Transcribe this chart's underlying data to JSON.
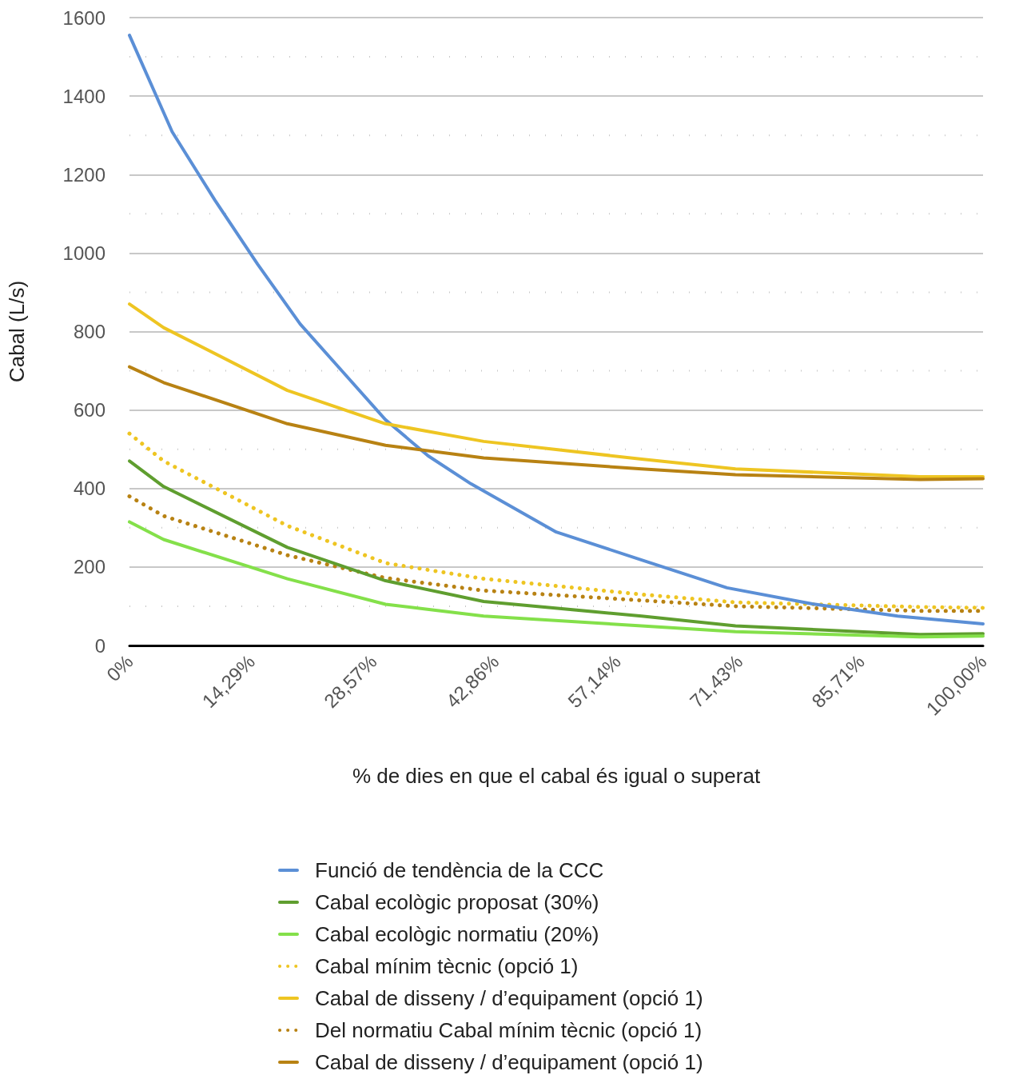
{
  "chart_data": {
    "type": "line",
    "xlabel": "% de dies en que el cabal és igual o superat",
    "ylabel": "Cabal (L/s)",
    "xlim": [
      0,
      100
    ],
    "xticks": [
      {
        "value": 0,
        "label": "0%"
      },
      {
        "value": 14.29,
        "label": "14,29%"
      },
      {
        "value": 28.57,
        "label": "28,57%"
      },
      {
        "value": 42.86,
        "label": "42,86%"
      },
      {
        "value": 57.14,
        "label": "57,14%"
      },
      {
        "value": 71.43,
        "label": "71,43%"
      },
      {
        "value": 85.71,
        "label": "85,71%"
      },
      {
        "value": 100,
        "label": "100,00%"
      }
    ],
    "ylim": [
      0,
      1600
    ],
    "yticks": [
      0,
      {
        "value": 100,
        "label": null
      },
      200,
      {
        "value": 300,
        "label": null
      },
      400,
      {
        "value": 500,
        "label": null
      },
      600,
      {
        "value": 700,
        "label": null
      },
      800,
      {
        "value": 900,
        "label": null
      },
      1000,
      {
        "value": 1100,
        "label": null
      },
      1200,
      {
        "value": 1300,
        "label": null
      },
      1400,
      {
        "value": 1500,
        "label": null
      },
      1600
    ],
    "grid": "y",
    "legend": "bottom",
    "marker": "none",
    "series": [
      {
        "name": "Funció de tendència de la CCC",
        "color": "#5b8fd6",
        "line_style": "solid",
        "x": [
          0,
          5,
          10,
          15,
          20,
          25,
          30,
          35,
          40,
          50,
          60,
          70,
          80,
          90,
          100
        ],
        "values": [
          1555,
          1309,
          1135,
          972,
          819,
          697,
          575,
          483,
          412,
          289,
          218,
          147,
          106,
          75,
          55
        ]
      },
      {
        "name": "Cabal ecològic proposat (30%)",
        "color": "#5f9e2f",
        "line_style": "solid",
        "x": [
          0,
          4,
          18.5,
          30,
          41.5,
          60,
          71,
          92.6,
          100
        ],
        "values": [
          470,
          405,
          250,
          165,
          112,
          75,
          50,
          28,
          30
        ]
      },
      {
        "name": "Cabal ecològic normatiu (20%)",
        "color": "#84e04a",
        "line_style": "solid",
        "x": [
          0,
          4,
          18.5,
          30,
          41.5,
          60,
          71,
          92.6,
          100
        ],
        "values": [
          315,
          270,
          170,
          105,
          75,
          50,
          35,
          22,
          24
        ]
      },
      {
        "name": "Cabal mínim tècnic (opció 1)",
        "color": "#eec522",
        "line_style": "dotted",
        "x": [
          0,
          4,
          18.5,
          30,
          41.5,
          60,
          71,
          92.6,
          100
        ],
        "values": [
          540,
          470,
          305,
          210,
          170,
          130,
          110,
          98,
          96
        ]
      },
      {
        "name": "Cabal de disseny / d’equipament (opció 1)",
        "color": "#eec522",
        "line_style": "solid",
        "x": [
          0,
          4,
          18.5,
          30,
          41.5,
          60,
          71,
          92.6,
          100
        ],
        "values": [
          870,
          810,
          650,
          565,
          520,
          475,
          450,
          430,
          430
        ]
      },
      {
        "name": "Del normatiu Cabal mínim tècnic (opció 1)",
        "color": "#b88213",
        "line_style": "dotted",
        "x": [
          0,
          4,
          18.5,
          30,
          41.5,
          60,
          71,
          92.6,
          100
        ],
        "values": [
          380,
          330,
          230,
          172,
          140,
          115,
          100,
          88,
          88
        ]
      },
      {
        "name": "Cabal de disseny / d’equipament (opció 1)",
        "color": "#b88213",
        "line_style": "solid",
        "x": [
          0,
          4,
          18.5,
          30,
          41.5,
          60,
          71,
          92.6,
          100
        ],
        "values": [
          710,
          670,
          565,
          510,
          478,
          450,
          435,
          423,
          425
        ]
      }
    ]
  }
}
